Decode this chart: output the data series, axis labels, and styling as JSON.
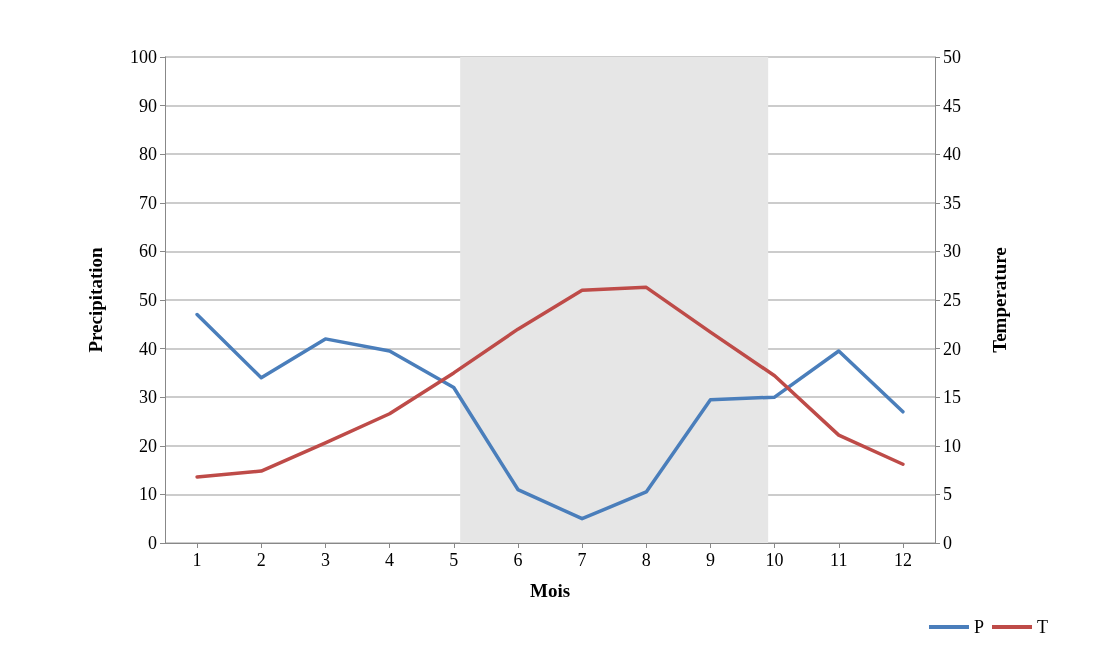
{
  "chart_data": {
    "type": "line",
    "xlabel": "Mois",
    "ylabel": "Precipitation",
    "y2label": "Temperature",
    "x": [
      1,
      2,
      3,
      4,
      5,
      6,
      7,
      8,
      9,
      10,
      11,
      12
    ],
    "xlim": [
      0.5,
      12.5
    ],
    "xticks": [
      1,
      2,
      3,
      4,
      5,
      6,
      7,
      8,
      9,
      10,
      11,
      12
    ],
    "ylim": [
      0,
      100
    ],
    "yticks": [
      0,
      10,
      20,
      30,
      40,
      50,
      60,
      70,
      80,
      90,
      100
    ],
    "y2lim": [
      0,
      50
    ],
    "y2ticks": [
      0,
      5,
      10,
      15,
      20,
      25,
      30,
      35,
      40,
      45,
      50
    ],
    "series": [
      {
        "name": "P",
        "color": "#4a7ebb",
        "values": [
          47,
          34,
          42,
          39.5,
          32,
          11,
          5,
          10.5,
          29.5,
          30,
          39.5,
          27
        ]
      },
      {
        "name": "T",
        "color": "#be4b48",
        "axis": "y2",
        "values": [
          6.8,
          7.4,
          10.3,
          13.3,
          17.5,
          22,
          26,
          26.3,
          21.7,
          17.2,
          11.1,
          8.1
        ]
      }
    ],
    "bands": [
      {
        "axis": "x",
        "from": 5.1,
        "to": 9.9,
        "color": "#e6e6e6"
      }
    ],
    "grid": "y",
    "legend": "bottom right",
    "marker": "none",
    "line_style": "solid"
  }
}
